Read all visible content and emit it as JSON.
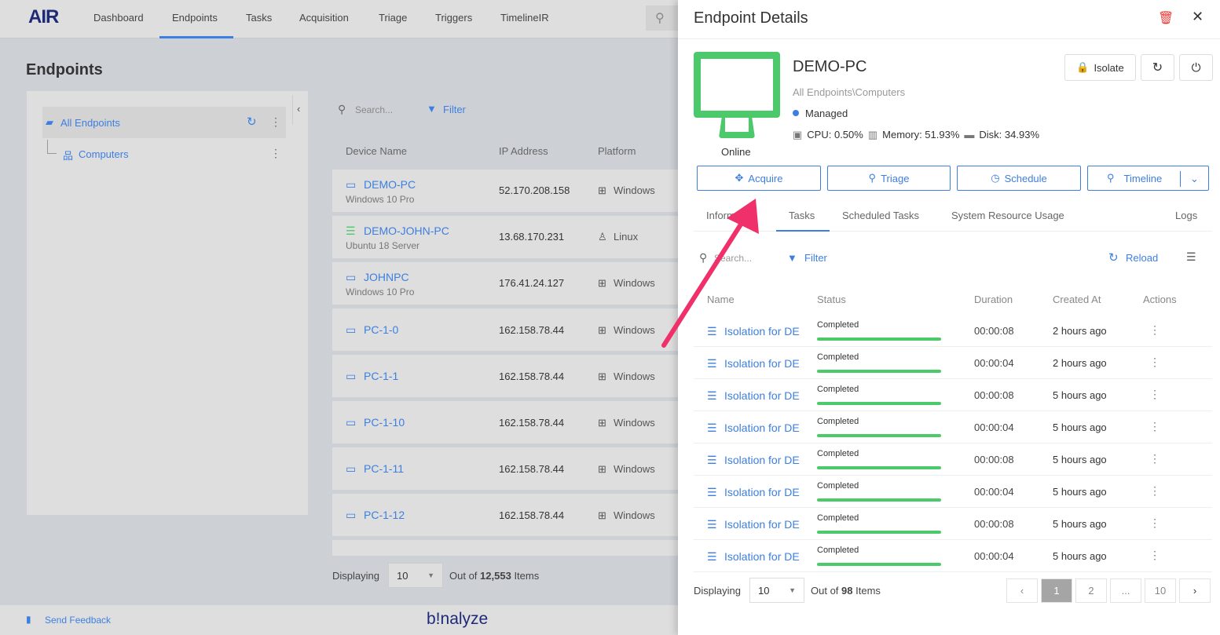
{
  "nav": {
    "logo": "AIR",
    "items": [
      "Dashboard",
      "Endpoints",
      "Tasks",
      "Acquisition",
      "Triage",
      "Triggers",
      "TimelineIR"
    ],
    "active": "Endpoints"
  },
  "page": {
    "title": "Endpoints"
  },
  "tree": {
    "root": "All Endpoints",
    "child": "Computers"
  },
  "list": {
    "search_placeholder": "Search...",
    "filter": "Filter",
    "headers": [
      "Device Name",
      "IP Address",
      "Platform"
    ],
    "rows": [
      {
        "name": "DEMO-PC",
        "os": "Windows 10 Pro",
        "ip": "52.170.208.158",
        "platform": "Windows",
        "icon": "monitor-icon"
      },
      {
        "name": "DEMO-JOHN-PC",
        "os": "Ubuntu 18 Server",
        "ip": "13.68.170.231",
        "platform": "Linux",
        "icon": "server-icon"
      },
      {
        "name": "JOHNPC",
        "os": "Windows 10 Pro",
        "ip": "176.41.24.127",
        "platform": "Windows",
        "icon": "monitor-icon"
      },
      {
        "name": "PC-1-0",
        "os": "",
        "ip": "162.158.78.44",
        "platform": "Windows",
        "icon": "monitor-icon"
      },
      {
        "name": "PC-1-1",
        "os": "",
        "ip": "162.158.78.44",
        "platform": "Windows",
        "icon": "monitor-icon"
      },
      {
        "name": "PC-1-10",
        "os": "",
        "ip": "162.158.78.44",
        "platform": "Windows",
        "icon": "monitor-icon"
      },
      {
        "name": "PC-1-11",
        "os": "",
        "ip": "162.158.78.44",
        "platform": "Windows",
        "icon": "monitor-icon"
      },
      {
        "name": "PC-1-12",
        "os": "",
        "ip": "162.158.78.44",
        "platform": "Windows",
        "icon": "monitor-icon"
      }
    ],
    "displaying_label": "Displaying",
    "page_size": "10",
    "out_of": "Out of",
    "total": "12,553",
    "items": "Items"
  },
  "footer": {
    "feedback": "Send Feedback",
    "brand": "b!nalyze"
  },
  "panel": {
    "title": "Endpoint Details",
    "device": "DEMO-PC",
    "path": "All Endpoints\\Computers",
    "managed": "Managed",
    "online": "Online",
    "cpu": "CPU: 0.50%",
    "memory": "Memory: 51.93%",
    "disk": "Disk: 34.93%",
    "isolate": "Isolate",
    "actions": [
      "Acquire",
      "Triage",
      "Schedule",
      "Timeline"
    ],
    "tabs": [
      "Information",
      "Tasks",
      "Scheduled Tasks",
      "System Resource Usage",
      "Logs"
    ],
    "active_tab": "Tasks",
    "search_placeholder": "Search...",
    "filter": "Filter",
    "reload": "Reload",
    "headers": [
      "Name",
      "Status",
      "Duration",
      "Created At",
      "Actions"
    ],
    "tasks": [
      {
        "name": "Isolation for DE",
        "status": "Completed",
        "progress": 100,
        "duration": "00:00:08",
        "created": "2 hours ago"
      },
      {
        "name": "Isolation for DE",
        "status": "Completed",
        "progress": 100,
        "duration": "00:00:04",
        "created": "2 hours ago"
      },
      {
        "name": "Isolation for DE",
        "status": "Completed",
        "progress": 100,
        "duration": "00:00:08",
        "created": "5 hours ago"
      },
      {
        "name": "Isolation for DE",
        "status": "Completed",
        "progress": 100,
        "duration": "00:00:04",
        "created": "5 hours ago"
      },
      {
        "name": "Isolation for DE",
        "status": "Completed",
        "progress": 100,
        "duration": "00:00:08",
        "created": "5 hours ago"
      },
      {
        "name": "Isolation for DE",
        "status": "Completed",
        "progress": 100,
        "duration": "00:00:04",
        "created": "5 hours ago"
      },
      {
        "name": "Isolation for DE",
        "status": "Completed",
        "progress": 100,
        "duration": "00:00:08",
        "created": "5 hours ago"
      },
      {
        "name": "Isolation for DE",
        "status": "Completed",
        "progress": 100,
        "duration": "00:00:04",
        "created": "5 hours ago"
      }
    ],
    "displaying_label": "Displaying",
    "page_size": "10",
    "out_of": "Out of",
    "total": "98",
    "items": "Items",
    "pages": [
      "1",
      "2",
      "...",
      "10"
    ],
    "current_page": "1"
  },
  "colors": {
    "accent": "#3d7fe0",
    "online": "#4cc96a",
    "delete": "#e53935",
    "annotation_arrow": "#f0306a"
  }
}
